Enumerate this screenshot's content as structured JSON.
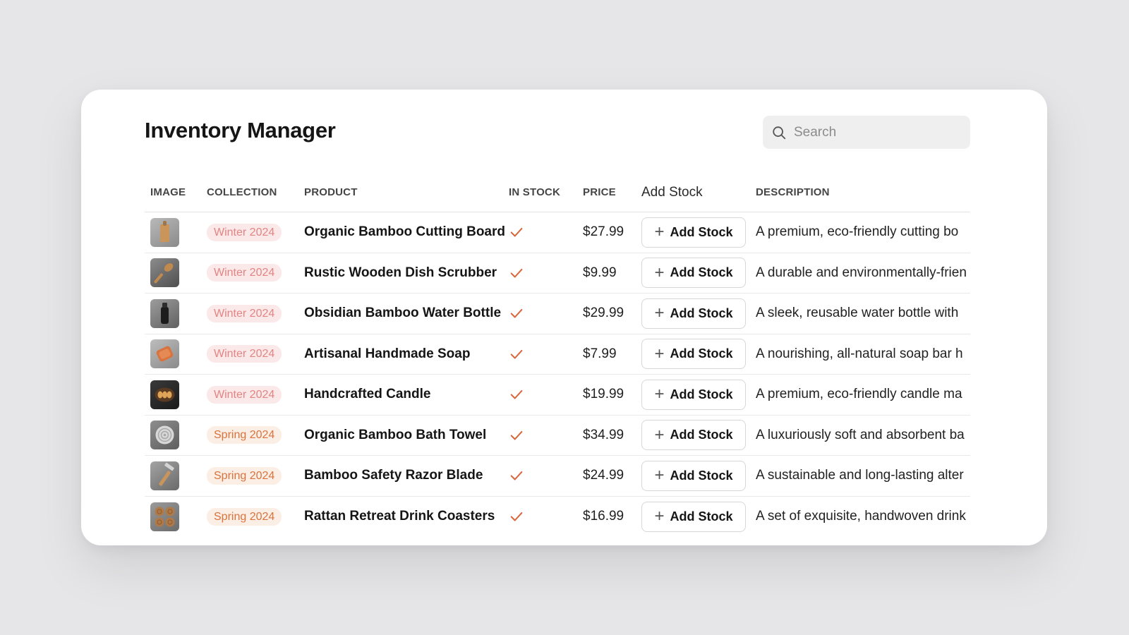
{
  "app": {
    "title": "Inventory Manager"
  },
  "search": {
    "placeholder": "Search",
    "value": ""
  },
  "table": {
    "headers": {
      "image": "IMAGE",
      "collection": "COLLECTION",
      "product": "PRODUCT",
      "in_stock": "IN STOCK",
      "price": "PRICE",
      "add_stock": "Add Stock",
      "description": "DESCRIPTION"
    },
    "add_button_label": "Add Stock",
    "rows": [
      {
        "thumb_icon": "cutting-board-icon",
        "collection": "Winter 2024",
        "collection_type": "winter",
        "product": "Organic Bamboo Cutting Board",
        "in_stock": true,
        "price": "$27.99",
        "description": "A premium, eco-friendly cutting bo"
      },
      {
        "thumb_icon": "scrubber-brush-icon",
        "collection": "Winter 2024",
        "collection_type": "winter",
        "product": "Rustic Wooden Dish Scrubber",
        "in_stock": true,
        "price": "$9.99",
        "description": "A durable and environmentally-frien"
      },
      {
        "thumb_icon": "water-bottle-icon",
        "collection": "Winter 2024",
        "collection_type": "winter",
        "product": "Obsidian Bamboo Water Bottle",
        "in_stock": true,
        "price": "$29.99",
        "description": "A sleek, reusable water bottle with"
      },
      {
        "thumb_icon": "soap-bar-icon",
        "collection": "Winter 2024",
        "collection_type": "winter",
        "product": "Artisanal Handmade Soap",
        "in_stock": true,
        "price": "$7.99",
        "description": "A nourishing, all-natural soap bar h"
      },
      {
        "thumb_icon": "candle-icon",
        "collection": "Winter 2024",
        "collection_type": "winter",
        "product": "Handcrafted Candle",
        "in_stock": true,
        "price": "$19.99",
        "description": "A premium, eco-friendly candle ma"
      },
      {
        "thumb_icon": "towel-icon",
        "collection": "Spring 2024",
        "collection_type": "spring",
        "product": "Organic Bamboo Bath Towel",
        "in_stock": true,
        "price": "$34.99",
        "description": "A luxuriously soft and absorbent ba"
      },
      {
        "thumb_icon": "razor-icon",
        "collection": "Spring 2024",
        "collection_type": "spring",
        "product": "Bamboo Safety Razor Blade",
        "in_stock": true,
        "price": "$24.99",
        "description": "A sustainable and long-lasting alter"
      },
      {
        "thumb_icon": "coasters-icon",
        "collection": "Spring 2024",
        "collection_type": "spring",
        "product": "Rattan Retreat Drink Coasters",
        "in_stock": true,
        "price": "$16.99",
        "description": "A set of exquisite, handwoven drink"
      }
    ]
  },
  "colors": {
    "page_bg": "#e6e6e8",
    "card_bg": "#ffffff",
    "check": "#d9653a",
    "winter_badge_bg": "#fbe8e8",
    "winter_badge_text": "#e38484",
    "spring_badge_bg": "#fbeee4",
    "spring_badge_text": "#d9733e"
  }
}
